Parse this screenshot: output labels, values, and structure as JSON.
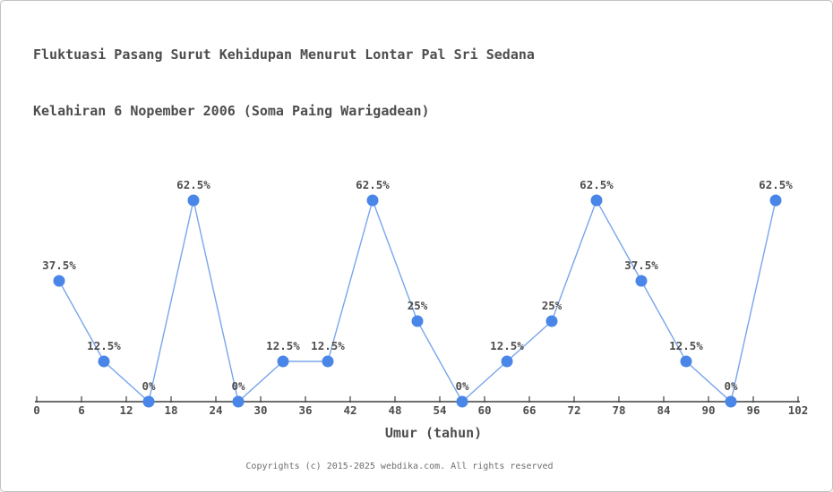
{
  "page": {
    "background": "#ffffff",
    "border_color": "#c2c2c2"
  },
  "chart_data": {
    "type": "line",
    "title_line1": "Fluktuasi Pasang Surut Kehidupan Menurut Lontar Pal Sri Sedana",
    "title_line2": "Kelahiran 6 Nopember 2006 (Soma Paing Warigadean)",
    "xlabel": "Umur (tahun)",
    "ylabel": "",
    "x": [
      3,
      9,
      15,
      21,
      27,
      33,
      39,
      45,
      51,
      57,
      63,
      69,
      75,
      81,
      87,
      93,
      99
    ],
    "values": [
      37.5,
      12.5,
      0,
      62.5,
      0,
      12.5,
      12.5,
      62.5,
      25,
      0,
      12.5,
      25,
      62.5,
      37.5,
      12.5,
      0,
      62.5
    ],
    "point_labels": [
      "37.5%",
      "12.5%",
      "0%",
      "62.5%",
      "0%",
      "12.5%",
      "12.5%",
      "62.5%",
      "25%",
      "0%",
      "12.5%",
      "25%",
      "62.5%",
      "37.5%",
      "12.5%",
      "0%",
      "62.5%"
    ],
    "x_ticks": [
      0,
      6,
      12,
      18,
      24,
      30,
      36,
      42,
      48,
      54,
      60,
      66,
      72,
      78,
      84,
      90,
      96,
      102
    ],
    "x_tick_labels": [
      "0",
      "6",
      "12",
      "18",
      "24",
      "30",
      "36",
      "42",
      "48",
      "54",
      "60",
      "66",
      "72",
      "78",
      "84",
      "90",
      "96",
      "102"
    ],
    "xlim": [
      0,
      102
    ],
    "ylim": [
      0,
      100
    ],
    "grid": false,
    "legend_position": "none",
    "line_color": "#7aa5ec",
    "marker_color": "#4a86e8",
    "axis_color": "#3d3d3d",
    "label_color": "#4d4d4d"
  },
  "footer": {
    "copyright": "Copyrights (c) 2015-2025 webdika.com. All rights reserved"
  }
}
